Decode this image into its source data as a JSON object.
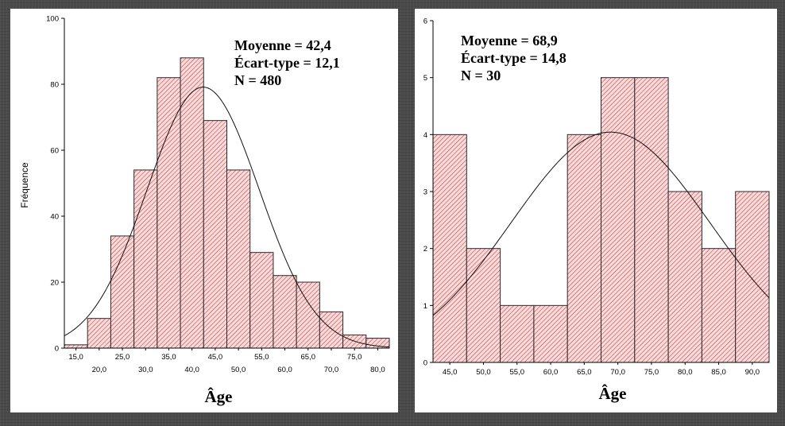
{
  "chart_data": [
    {
      "type": "bar",
      "title": "",
      "xlabel": "Âge",
      "ylabel": "Fréquence",
      "ylim": [
        0,
        100
      ],
      "yticks": [
        "0",
        "20",
        "40",
        "60",
        "80",
        "100"
      ],
      "xticks_upper": [
        "15,0",
        "25,0",
        "35,0",
        "45,0",
        "55,0",
        "65,0",
        "75,0"
      ],
      "xticks_lower": [
        "20,0",
        "30,0",
        "40,0",
        "50,0",
        "60,0",
        "70,0",
        "80,0"
      ],
      "x_range": [
        12.5,
        82.5
      ],
      "bin_width": 5,
      "categories": [
        "15,0",
        "20,0",
        "25,0",
        "30,0",
        "35,0",
        "40,0",
        "45,0",
        "50,0",
        "55,0",
        "60,0",
        "65,0",
        "70,0",
        "75,0",
        "80,0"
      ],
      "values": [
        1,
        9,
        34,
        54,
        82,
        88,
        69,
        54,
        29,
        22,
        20,
        11,
        4,
        3
      ],
      "normal_curve": {
        "mean": 42.4,
        "sd": 12.1,
        "n": 480
      },
      "stats": [
        "Moyenne = 42,4",
        "Écart-type = 12,1",
        "N = 480"
      ],
      "bar_color": "#c0393b",
      "bar_fill": "#f7dada"
    },
    {
      "type": "bar",
      "title": "",
      "xlabel": "Âge",
      "ylabel": "",
      "ylim": [
        0,
        6
      ],
      "yticks": [
        "0",
        "1",
        "2",
        "3",
        "4",
        "5",
        "6"
      ],
      "xticks": [
        "45,0",
        "50,0",
        "55,0",
        "60,0",
        "65,0",
        "70,0",
        "75,0",
        "80,0",
        "85,0",
        "90,0"
      ],
      "x_range": [
        42.5,
        92.5
      ],
      "bin_width": 5,
      "categories": [
        "45,0",
        "50,0",
        "55,0",
        "60,0",
        "65,0",
        "70,0",
        "75,0",
        "80,0",
        "85,0",
        "90,0"
      ],
      "values": [
        4,
        2,
        1,
        1,
        4,
        5,
        5,
        3,
        2,
        3
      ],
      "normal_curve": {
        "mean": 68.9,
        "sd": 14.8,
        "n": 30
      },
      "stats": [
        "Moyenne = 68,9",
        "Écart-type = 14,8",
        "N = 30"
      ],
      "bar_color": "#c0393b",
      "bar_fill": "#f7dada"
    }
  ]
}
